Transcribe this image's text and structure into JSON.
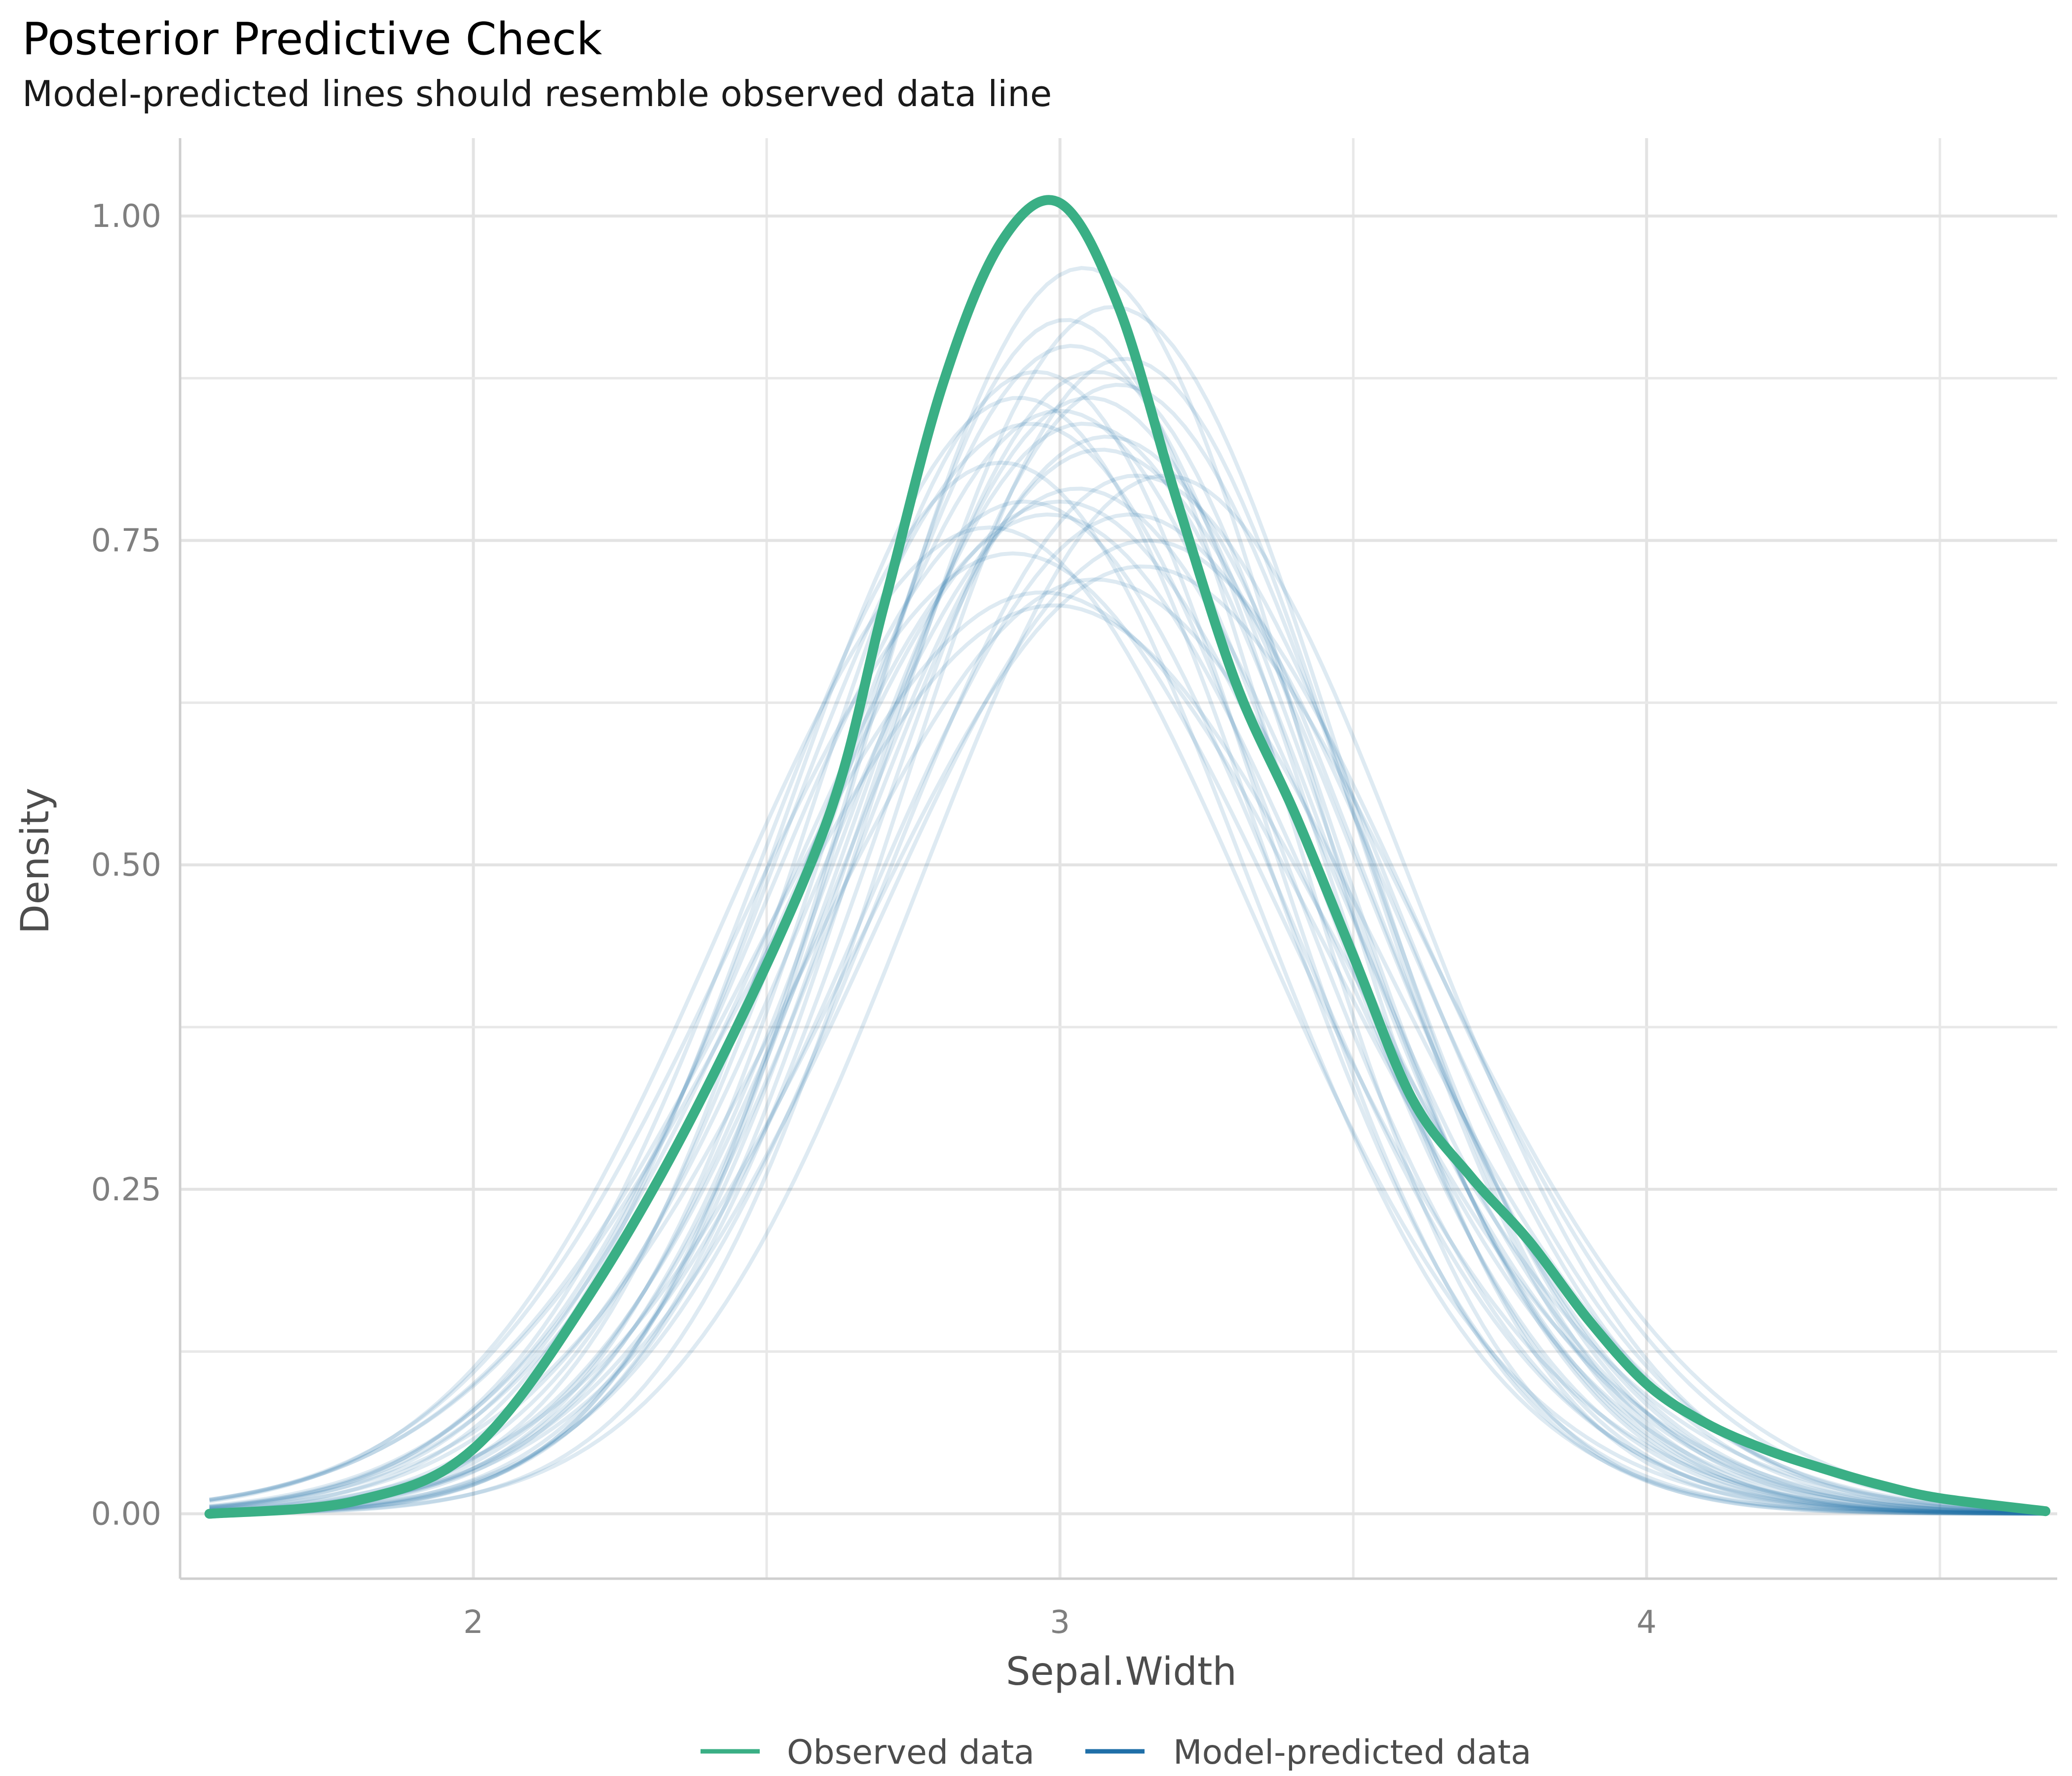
{
  "chart_data": {
    "type": "line",
    "title": "Posterior Predictive Check",
    "subtitle": "Model-predicted lines should resemble observed data line",
    "xlabel": "Sepal.Width",
    "ylabel": "Density",
    "xlim": [
      1.5,
      4.7
    ],
    "ylim": [
      -0.05,
      1.06
    ],
    "x_ticks": [
      2,
      3,
      4
    ],
    "x_tick_labels": [
      "2",
      "3",
      "4"
    ],
    "y_ticks": [
      0,
      0.25,
      0.5,
      0.75,
      1.0
    ],
    "y_tick_labels": [
      "0.00",
      "0.25",
      "0.50",
      "0.75",
      "1.00"
    ],
    "grid": true,
    "legend_position": "bottom",
    "legend": [
      {
        "label": "Observed data",
        "color": "#3aaf85"
      },
      {
        "label": "Model-predicted data",
        "color": "#1f6fa8"
      }
    ],
    "observed": {
      "name": "Observed data",
      "color": "#3aaf85",
      "x": [
        1.55,
        1.8,
        2.0,
        2.2,
        2.4,
        2.6,
        2.7,
        2.8,
        2.9,
        3.0,
        3.1,
        3.2,
        3.3,
        3.4,
        3.5,
        3.6,
        3.7,
        3.8,
        3.9,
        4.0,
        4.1,
        4.2,
        4.3,
        4.4,
        4.5,
        4.68
      ],
      "y": [
        0.0,
        0.01,
        0.05,
        0.17,
        0.33,
        0.53,
        0.7,
        0.87,
        0.98,
        1.01,
        0.93,
        0.78,
        0.64,
        0.54,
        0.43,
        0.32,
        0.26,
        0.21,
        0.15,
        0.1,
        0.07,
        0.05,
        0.035,
        0.022,
        0.012,
        0.002
      ]
    },
    "predicted": {
      "name": "Model-predicted data",
      "color": "#1f6fa8",
      "opacity": 0.15,
      "draws": [
        {
          "mu": 2.95,
          "sigma": 0.43,
          "peak": 0.84
        },
        {
          "mu": 3.02,
          "sigma": 0.4,
          "peak": 0.9
        },
        {
          "mu": 3.07,
          "sigma": 0.44,
          "peak": 0.82
        },
        {
          "mu": 2.98,
          "sigma": 0.46,
          "peak": 0.77
        },
        {
          "mu": 3.1,
          "sigma": 0.41,
          "peak": 0.87
        },
        {
          "mu": 3.04,
          "sigma": 0.38,
          "peak": 0.96
        },
        {
          "mu": 2.92,
          "sigma": 0.47,
          "peak": 0.74
        },
        {
          "mu": 3.13,
          "sigma": 0.43,
          "peak": 0.8
        },
        {
          "mu": 3.0,
          "sigma": 0.42,
          "peak": 0.85
        },
        {
          "mu": 3.06,
          "sigma": 0.48,
          "peak": 0.72
        },
        {
          "mu": 2.96,
          "sigma": 0.39,
          "peak": 0.88
        },
        {
          "mu": 3.09,
          "sigma": 0.4,
          "peak": 0.93
        },
        {
          "mu": 3.03,
          "sigma": 0.45,
          "peak": 0.79
        },
        {
          "mu": 2.9,
          "sigma": 0.42,
          "peak": 0.81
        },
        {
          "mu": 3.15,
          "sigma": 0.46,
          "peak": 0.75
        },
        {
          "mu": 3.05,
          "sigma": 0.41,
          "peak": 0.86
        },
        {
          "mu": 2.99,
          "sigma": 0.5,
          "peak": 0.7
        },
        {
          "mu": 3.11,
          "sigma": 0.39,
          "peak": 0.89
        },
        {
          "mu": 2.94,
          "sigma": 0.44,
          "peak": 0.78
        },
        {
          "mu": 3.08,
          "sigma": 0.43,
          "peak": 0.83
        },
        {
          "mu": 3.01,
          "sigma": 0.37,
          "peak": 0.92
        },
        {
          "mu": 2.97,
          "sigma": 0.49,
          "peak": 0.71
        },
        {
          "mu": 3.12,
          "sigma": 0.45,
          "peak": 0.77
        },
        {
          "mu": 3.04,
          "sigma": 0.42,
          "peak": 0.84
        },
        {
          "mu": 2.88,
          "sigma": 0.45,
          "peak": 0.76
        },
        {
          "mu": 3.18,
          "sigma": 0.42,
          "peak": 0.8
        },
        {
          "mu": 3.0,
          "sigma": 0.46,
          "peak": 0.78
        },
        {
          "mu": 3.06,
          "sigma": 0.4,
          "peak": 0.88
        },
        {
          "mu": 2.93,
          "sigma": 0.41,
          "peak": 0.86
        },
        {
          "mu": 3.14,
          "sigma": 0.48,
          "peak": 0.73
        }
      ]
    }
  }
}
